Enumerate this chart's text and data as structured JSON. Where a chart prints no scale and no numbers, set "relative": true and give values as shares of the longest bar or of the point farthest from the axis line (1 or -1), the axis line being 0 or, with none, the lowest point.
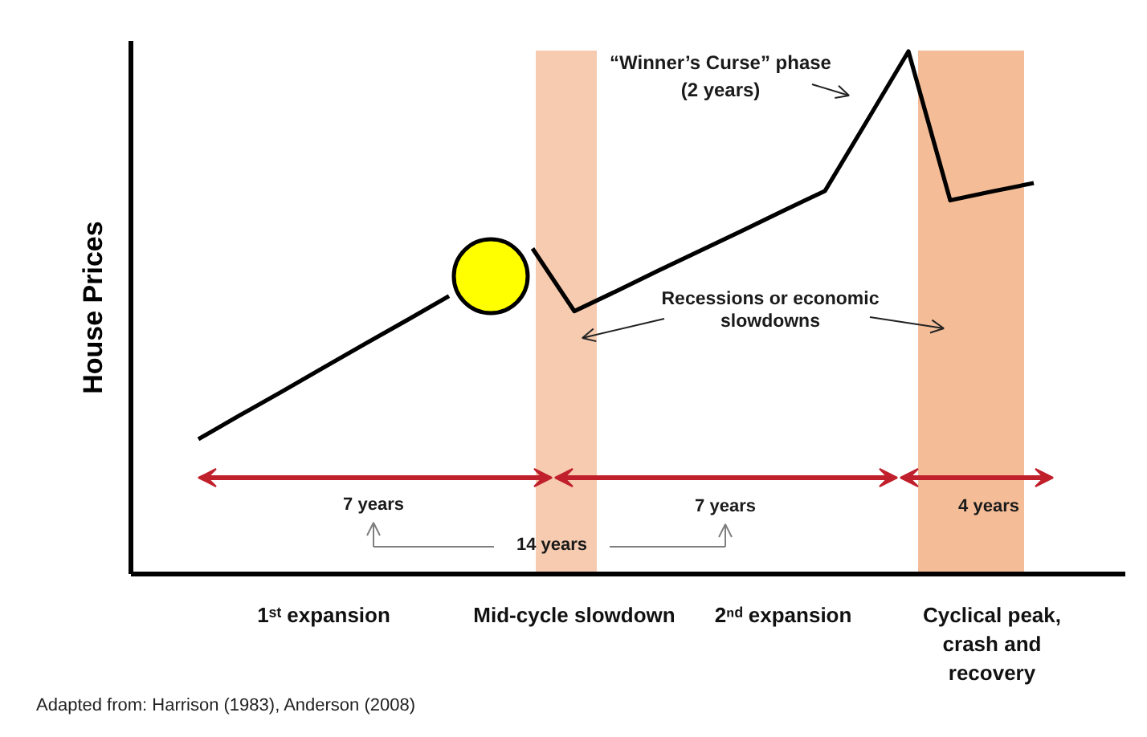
{
  "chart_data": {
    "type": "line",
    "relative": true,
    "ylabel": "House Prices",
    "categories": [
      null,
      null,
      null,
      "1ˢᵗ expansion",
      null,
      null,
      null,
      null,
      null,
      "Mid-cycle slowdown",
      null,
      null,
      null,
      null,
      "2ⁿᵈ expansion",
      null,
      null,
      null,
      null,
      "Cyclical peak, crash and recovery",
      null
    ],
    "series": [
      {
        "color": "#000000",
        "values": [
          0.258,
          0.304,
          0.349,
          0.395,
          0.441,
          0.486,
          0.532,
          null,
          0.623,
          0.503,
          0.541,
          0.58,
          0.618,
          0.656,
          0.695,
          0.733,
          0.866,
          1,
          0.715,
          0.732,
          0.748
        ]
      },
      {
        "type": "scatter",
        "color": "#ffff00",
        "marker": "circle",
        "values": [
          null,
          null,
          null,
          null,
          null,
          null,
          null,
          0.57,
          null,
          null,
          null,
          null,
          null,
          null,
          null,
          null,
          null,
          null,
          null,
          null,
          null
        ]
      }
    ],
    "annotations": [
      "7 years",
      "7 years",
      "4 years",
      "14 years",
      "“Winner’s Curse” phase (2 years)",
      "Recessions or economic slowdowns",
      "Adapted from: Harrison (1983), Anderson (2008)"
    ],
    "grid": false
  }
}
